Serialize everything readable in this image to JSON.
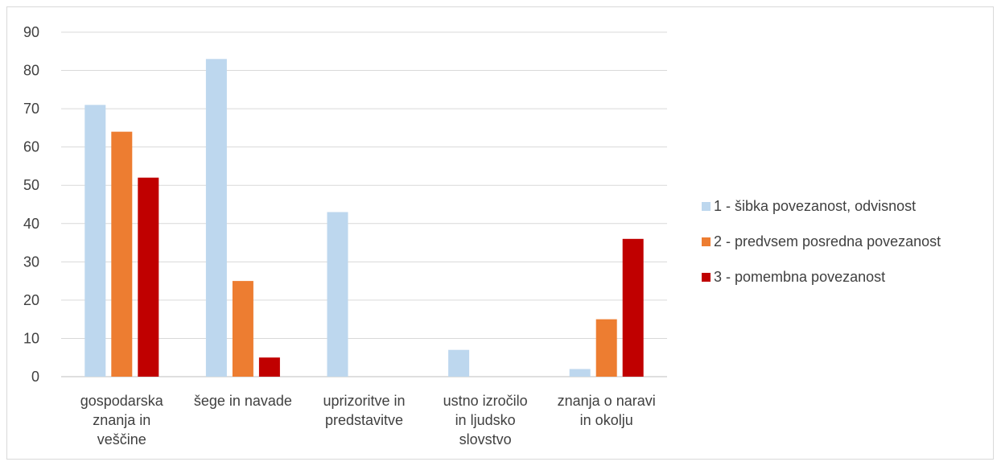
{
  "chart_data": {
    "type": "bar",
    "title": "",
    "xlabel": "",
    "ylabel": "",
    "ylim": [
      0,
      90
    ],
    "yticks": [
      0,
      10,
      20,
      30,
      40,
      50,
      60,
      70,
      80,
      90
    ],
    "grid": true,
    "legend_position": "right",
    "categories": [
      [
        "gospodarska",
        "znanja in",
        "veščine"
      ],
      [
        "šege in navade"
      ],
      [
        "uprizoritve in",
        "predstavitve"
      ],
      [
        "ustno izročilo",
        "in ljudsko",
        "slovstvo"
      ],
      [
        "znanja o naravi",
        "in okolju"
      ]
    ],
    "series": [
      {
        "name": "1 - šibka povezanost, odvisnost",
        "color": "#bdd7ee",
        "values": [
          71,
          83,
          43,
          7,
          2
        ]
      },
      {
        "name": "2 - predvsem posredna povezanost",
        "color": "#ed7d31",
        "values": [
          64,
          25,
          0,
          0,
          15
        ]
      },
      {
        "name": "3 - pomembna povezanost",
        "color": "#c00000",
        "values": [
          52,
          5,
          0,
          0,
          36
        ]
      }
    ]
  }
}
